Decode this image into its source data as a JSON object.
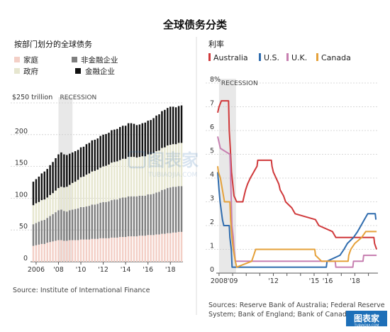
{
  "page": {
    "title": "全球债务分类"
  },
  "chart_data": [
    {
      "type": "bar",
      "stacked": true,
      "title": "按部门划分的全球债务",
      "unit_label": "$250 trillion",
      "y_tick_labels": [
        "0",
        "50",
        "100",
        "150",
        "200"
      ],
      "ylim": [
        0,
        250
      ],
      "x_tick_labels": [
        "2006",
        "'08",
        "'10",
        "'12",
        "'14",
        "'16",
        "'18"
      ],
      "recession": {
        "label": "RECESSION",
        "start": 2008.0,
        "end": 2009.25
      },
      "source": "Source: Institute of International Finance",
      "grid": true,
      "legend_position": "top-left",
      "legend": [
        {
          "name": "家庭",
          "color": "#f3cfc6"
        },
        {
          "name": "非金融企业",
          "color": "#7f7f7f"
        },
        {
          "name": "政府",
          "color": "#e6e6cf"
        },
        {
          "name": "金融企业",
          "color": "#111111"
        }
      ],
      "x": [
        2005.75,
        2006.0,
        2006.25,
        2006.5,
        2006.75,
        2007.0,
        2007.25,
        2007.5,
        2007.75,
        2008.0,
        2008.25,
        2008.5,
        2008.75,
        2009.0,
        2009.25,
        2009.5,
        2009.75,
        2010.0,
        2010.25,
        2010.5,
        2010.75,
        2011.0,
        2011.25,
        2011.5,
        2011.75,
        2012.0,
        2012.25,
        2012.5,
        2012.75,
        2013.0,
        2013.25,
        2013.5,
        2013.75,
        2014.0,
        2014.25,
        2014.5,
        2014.75,
        2015.0,
        2015.25,
        2015.5,
        2015.75,
        2016.0,
        2016.25,
        2016.5,
        2016.75,
        2017.0,
        2017.25,
        2017.5,
        2017.75,
        2018.0,
        2018.25,
        2018.5,
        2018.75,
        2019.0
      ],
      "series": [
        {
          "name": "家庭",
          "color": "#f3cfc6",
          "values": [
            25,
            26,
            27,
            28,
            28,
            30,
            31,
            32,
            33,
            34,
            34,
            33,
            33,
            34,
            34,
            34,
            34,
            35,
            35,
            35,
            35,
            36,
            36,
            36,
            37,
            37,
            37,
            37,
            38,
            38,
            38,
            39,
            39,
            39,
            40,
            40,
            40,
            40,
            41,
            41,
            41,
            42,
            42,
            42,
            43,
            43,
            44,
            44,
            45,
            45,
            46,
            46,
            47,
            47
          ]
        },
        {
          "name": "非金融企业",
          "color": "#7f7f7f",
          "values": [
            34,
            35,
            36,
            37,
            38,
            39,
            41,
            43,
            45,
            47,
            48,
            47,
            46,
            47,
            48,
            49,
            50,
            51,
            51,
            52,
            53,
            54,
            54,
            55,
            56,
            57,
            57,
            58,
            59,
            60,
            60,
            61,
            62,
            62,
            63,
            63,
            63,
            63,
            63,
            63,
            63,
            64,
            64,
            65,
            66,
            67,
            69,
            70,
            71,
            72,
            72,
            72,
            72,
            72
          ]
        },
        {
          "name": "政府",
          "color": "#e6e6cf",
          "values": [
            30,
            31,
            31,
            32,
            32,
            32,
            33,
            33,
            34,
            35,
            36,
            37,
            39,
            40,
            42,
            43,
            45,
            47,
            48,
            50,
            51,
            52,
            53,
            54,
            55,
            56,
            57,
            58,
            59,
            59,
            60,
            60,
            61,
            61,
            62,
            62,
            62,
            61,
            61,
            62,
            62,
            63,
            63,
            64,
            65,
            65,
            66,
            66,
            67,
            67,
            67,
            67,
            68,
            68
          ]
        },
        {
          "name": "金融企业",
          "color": "#111111",
          "values": [
            37,
            38,
            40,
            42,
            44,
            45,
            47,
            49,
            51,
            53,
            54,
            52,
            50,
            49,
            48,
            48,
            47,
            47,
            47,
            48,
            48,
            49,
            49,
            49,
            50,
            50,
            50,
            50,
            51,
            51,
            51,
            52,
            52,
            52,
            53,
            53,
            52,
            51,
            51,
            52,
            53,
            53,
            54,
            55,
            56,
            57,
            58,
            59,
            59,
            60,
            59,
            58,
            58,
            59
          ]
        }
      ]
    },
    {
      "type": "line",
      "title": "利率",
      "y_tick_labels": [
        "0",
        "1",
        "2",
        "3",
        "4",
        "5",
        "6",
        "7",
        "8%"
      ],
      "ylim": [
        0,
        8
      ],
      "x_tick_labels": [
        "2008",
        "'09",
        "'10",
        "'11",
        "'12",
        "'13",
        "'14",
        "'15",
        "'16",
        "'17",
        "'18",
        "'19"
      ],
      "x_tick_values": [
        2008,
        2009,
        2010,
        2011,
        2012,
        2013,
        2014,
        2015,
        2016,
        2017,
        2018,
        2019
      ],
      "x_tick_label_shown": [
        true,
        true,
        false,
        false,
        true,
        false,
        false,
        true,
        true,
        false,
        true,
        false
      ],
      "xlim": [
        2007.9,
        2019.7
      ],
      "recession": {
        "label": "RECESSION",
        "start": 2008.0,
        "end": 2009.25
      },
      "source_line1": "Sources: Reserve Bank of Australia; Federal Reserve",
      "source_line2": "System; Bank of England; Bank of Canada",
      "grid": true,
      "legend_position": "top",
      "series": [
        {
          "name": "Australia",
          "color": "#d0393b",
          "points": [
            [
              2007.9,
              6.75
            ],
            [
              2008.0,
              7.0
            ],
            [
              2008.17,
              7.25
            ],
            [
              2008.7,
              7.25
            ],
            [
              2008.75,
              6.0
            ],
            [
              2008.83,
              5.25
            ],
            [
              2008.92,
              4.25
            ],
            [
              2009.1,
              3.25
            ],
            [
              2009.3,
              3.0
            ],
            [
              2009.75,
              3.0
            ],
            [
              2009.85,
              3.25
            ],
            [
              2009.95,
              3.5
            ],
            [
              2010.1,
              3.75
            ],
            [
              2010.3,
              4.0
            ],
            [
              2010.8,
              4.5
            ],
            [
              2010.85,
              4.75
            ],
            [
              2011.85,
              4.75
            ],
            [
              2011.9,
              4.5
            ],
            [
              2012.0,
              4.25
            ],
            [
              2012.4,
              3.75
            ],
            [
              2012.5,
              3.5
            ],
            [
              2012.75,
              3.25
            ],
            [
              2012.9,
              3.0
            ],
            [
              2013.35,
              2.75
            ],
            [
              2013.6,
              2.5
            ],
            [
              2015.1,
              2.25
            ],
            [
              2015.35,
              2.0
            ],
            [
              2016.35,
              1.75
            ],
            [
              2016.6,
              1.5
            ],
            [
              2019.4,
              1.5
            ],
            [
              2019.45,
              1.25
            ],
            [
              2019.6,
              1.0
            ]
          ]
        },
        {
          "name": "U.S.",
          "color": "#2f6cae",
          "points": [
            [
              2007.9,
              4.25
            ],
            [
              2008.0,
              3.5
            ],
            [
              2008.08,
              3.0
            ],
            [
              2008.25,
              2.25
            ],
            [
              2008.35,
              2.0
            ],
            [
              2008.75,
              2.0
            ],
            [
              2008.8,
              1.5
            ],
            [
              2008.9,
              1.0
            ],
            [
              2008.96,
              0.25
            ],
            [
              2015.9,
              0.25
            ],
            [
              2015.95,
              0.5
            ],
            [
              2016.9,
              0.75
            ],
            [
              2017.2,
              1.0
            ],
            [
              2017.45,
              1.25
            ],
            [
              2017.9,
              1.5
            ],
            [
              2018.2,
              1.75
            ],
            [
              2018.45,
              2.0
            ],
            [
              2018.7,
              2.25
            ],
            [
              2018.95,
              2.5
            ],
            [
              2019.5,
              2.5
            ],
            [
              2019.55,
              2.25
            ]
          ]
        },
        {
          "name": "U.K.",
          "color": "#c77fb0",
          "points": [
            [
              2007.9,
              5.75
            ],
            [
              2008.0,
              5.5
            ],
            [
              2008.1,
              5.25
            ],
            [
              2008.8,
              5.0
            ],
            [
              2008.83,
              4.5
            ],
            [
              2008.9,
              3.0
            ],
            [
              2008.95,
              2.0
            ],
            [
              2009.05,
              1.5
            ],
            [
              2009.1,
              1.0
            ],
            [
              2009.2,
              0.5
            ],
            [
              2016.55,
              0.5
            ],
            [
              2016.6,
              0.25
            ],
            [
              2017.85,
              0.25
            ],
            [
              2017.9,
              0.5
            ],
            [
              2018.6,
              0.5
            ],
            [
              2018.65,
              0.75
            ],
            [
              2019.6,
              0.75
            ]
          ]
        },
        {
          "name": "Canada",
          "color": "#e5a13a",
          "points": [
            [
              2007.9,
              4.5
            ],
            [
              2007.95,
              4.25
            ],
            [
              2008.1,
              4.0
            ],
            [
              2008.25,
              3.5
            ],
            [
              2008.4,
              3.0
            ],
            [
              2008.8,
              3.0
            ],
            [
              2008.85,
              2.25
            ],
            [
              2008.95,
              1.5
            ],
            [
              2009.05,
              1.0
            ],
            [
              2009.2,
              0.5
            ],
            [
              2009.3,
              0.25
            ],
            [
              2010.4,
              0.5
            ],
            [
              2010.55,
              0.75
            ],
            [
              2010.7,
              1.0
            ],
            [
              2015.05,
              1.0
            ],
            [
              2015.1,
              0.75
            ],
            [
              2015.55,
              0.5
            ],
            [
              2017.5,
              0.5
            ],
            [
              2017.55,
              0.75
            ],
            [
              2017.7,
              1.0
            ],
            [
              2018.0,
              1.25
            ],
            [
              2018.5,
              1.5
            ],
            [
              2018.8,
              1.75
            ],
            [
              2019.6,
              1.75
            ]
          ]
        }
      ]
    }
  ],
  "watermark": {
    "name": "图表家",
    "url": "TUBIAOJIA.COM"
  }
}
